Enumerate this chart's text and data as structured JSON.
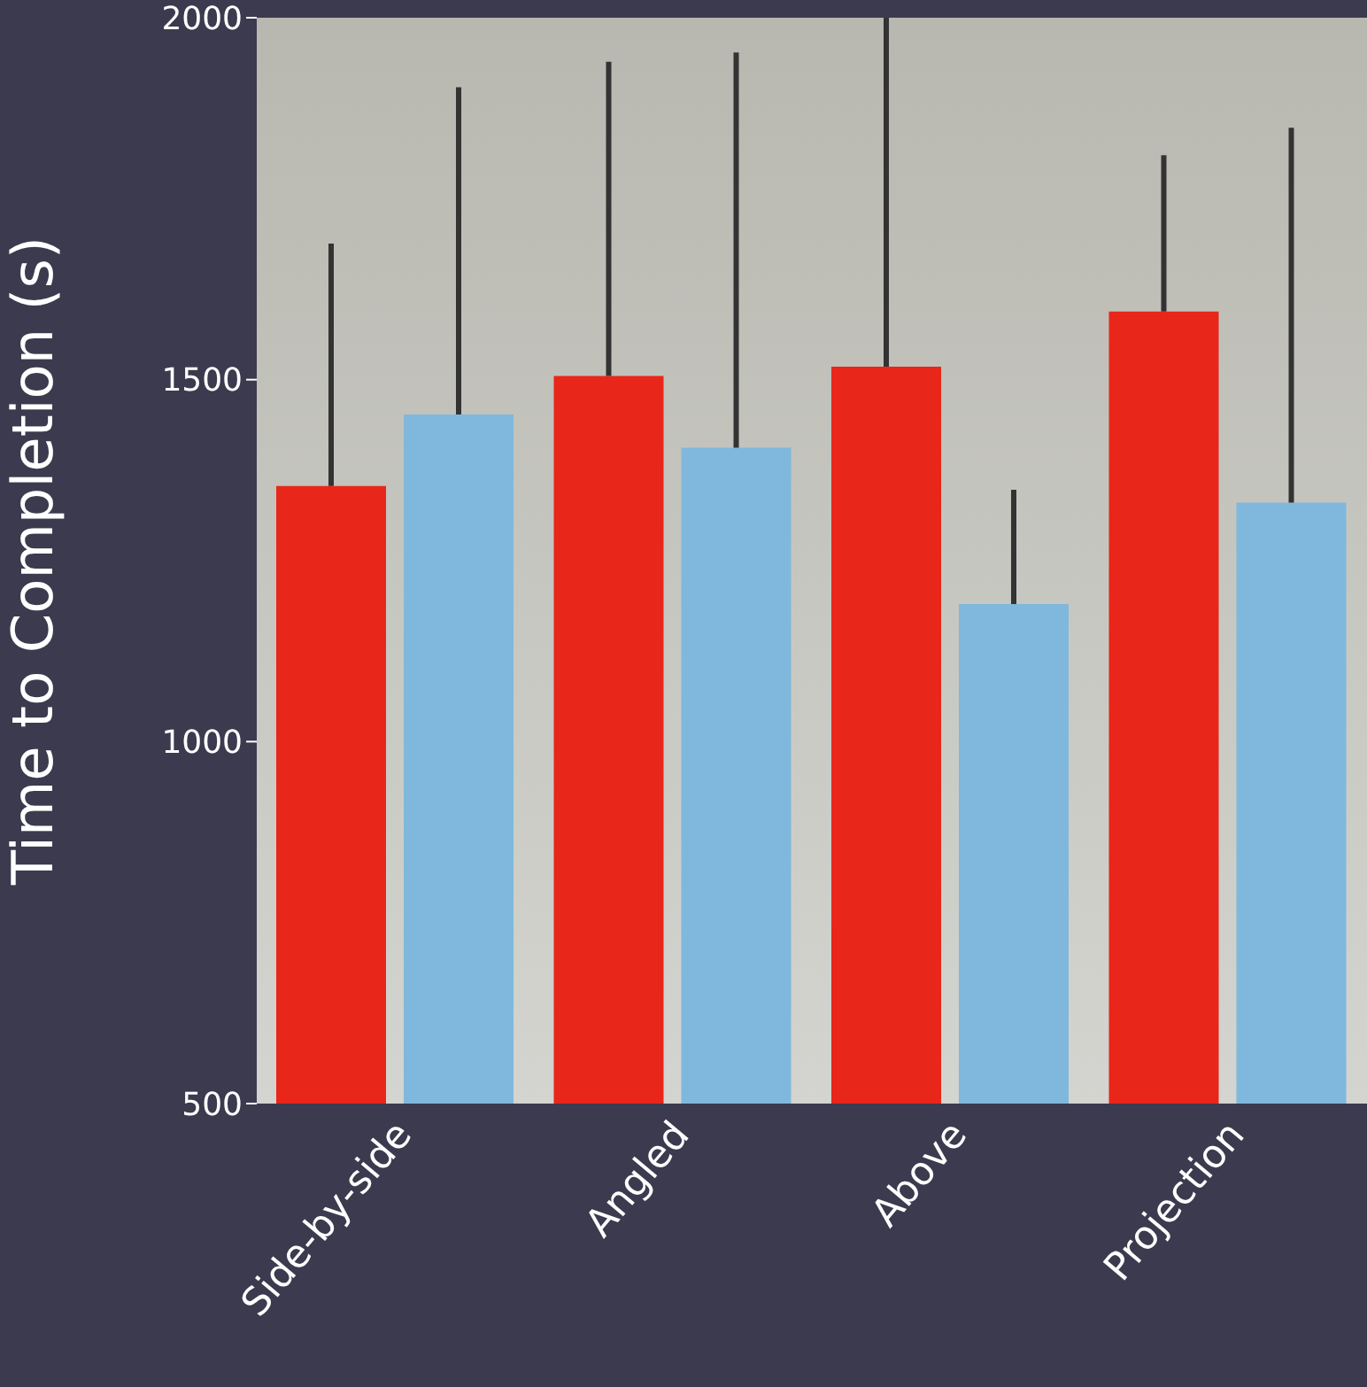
{
  "chart_data": {
    "type": "bar",
    "ylabel": "Time to Completion (s)",
    "categories": [
      "Side-by-side",
      "Angled",
      "Above",
      "Projection"
    ],
    "series": [
      {
        "color": "#e8261a",
        "values": [
          1353,
          1505,
          1518,
          1594
        ],
        "errors": [
          [
            1353,
            1688
          ],
          [
            1505,
            1939
          ],
          [
            1518,
            2000
          ],
          [
            1594,
            1810
          ]
        ]
      },
      {
        "color": "#7fb8dc",
        "values": [
          1452,
          1406,
          1190,
          1330
        ],
        "errors": [
          [
            1452,
            1904
          ],
          [
            1406,
            1952
          ],
          [
            1190,
            1348
          ],
          [
            1330,
            1848
          ]
        ]
      }
    ],
    "ylim": [
      500,
      2000
    ],
    "yticks": [
      500,
      1000,
      1500,
      2000
    ],
    "grid": false,
    "legend": false
  }
}
